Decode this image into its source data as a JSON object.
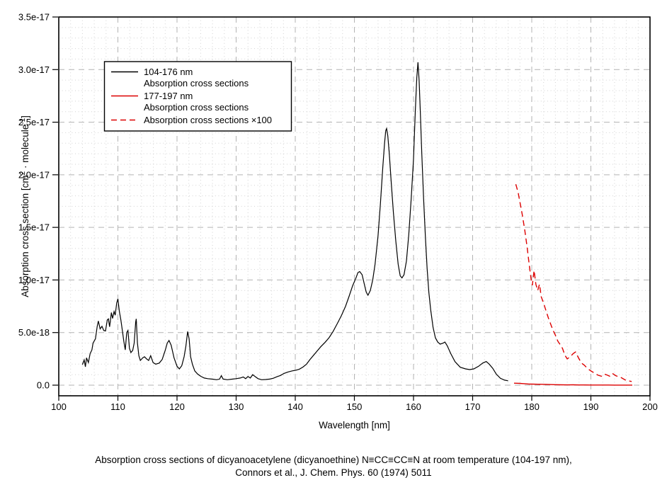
{
  "figure": {
    "caption_line1": "Absorption cross sections of dicyanoacetylene (dicyanoethine) N≡CC≡CC≡N at room temperature (104-197 nm),",
    "caption_line2": "Connors et al., J. Chem. Phys. 60 (1974) 5011"
  },
  "chart_data": {
    "type": "line",
    "title": "",
    "xlabel": "Wavelength [nm]",
    "ylabel": "Absorption cross section [cm2 · molecule-1]",
    "ylabel_parts": [
      {
        "text": "Absorption cross section [cm",
        "sup": false
      },
      {
        "text": "2",
        "sup": true
      },
      {
        "text": " · molecule",
        "sup": false
      },
      {
        "text": "-1",
        "sup": true
      },
      {
        "text": "]",
        "sup": false
      }
    ],
    "y_units": "1e-17 cm^2 per molecule",
    "xlim": [
      100,
      200
    ],
    "ylim": [
      -0.101,
      3.5
    ],
    "x_major_step": 10,
    "x_minor_step": 2,
    "y_major_step": 0.5,
    "y_minor_step": 0.1,
    "grid": {
      "major": "dashed",
      "minor": "dotted"
    },
    "x_ticks": [
      100,
      110,
      120,
      130,
      140,
      150,
      160,
      170,
      180,
      190,
      200
    ],
    "y_ticks": [
      {
        "v": 0.0,
        "label": "0.0"
      },
      {
        "v": 0.5,
        "label": "5.0e-18"
      },
      {
        "v": 1.0,
        "label": "1.0e-17"
      },
      {
        "v": 1.5,
        "label": "1.5e-17"
      },
      {
        "v": 2.0,
        "label": "2.0e-17"
      },
      {
        "v": 2.5,
        "label": "2.5e-17"
      },
      {
        "v": 3.0,
        "label": "3.0e-17"
      },
      {
        "v": 3.5,
        "label": "3.5e-17"
      }
    ],
    "legend": {
      "position": "top-left",
      "entries": [
        {
          "lines": [
            "104-176 nm",
            "Absorption cross sections"
          ],
          "color": "#000000",
          "dash": false
        },
        {
          "lines": [
            "177-197 nm",
            "Absorption cross sections"
          ],
          "color": "#dd0000",
          "dash": false
        },
        {
          "lines": [
            "Absorption cross sections ×100"
          ],
          "color": "#dd0000",
          "dash": true
        }
      ]
    },
    "series": [
      {
        "name": "104-176 nm Absorption cross sections",
        "color": "#000000",
        "dash": false,
        "points": [
          [
            104.0,
            0.195
          ],
          [
            104.3,
            0.24
          ],
          [
            104.5,
            0.175
          ],
          [
            104.7,
            0.26
          ],
          [
            105.0,
            0.215
          ],
          [
            105.3,
            0.3
          ],
          [
            105.6,
            0.335
          ],
          [
            105.8,
            0.4
          ],
          [
            106.0,
            0.42
          ],
          [
            106.2,
            0.44
          ],
          [
            106.5,
            0.56
          ],
          [
            106.7,
            0.61
          ],
          [
            107.0,
            0.535
          ],
          [
            107.3,
            0.56
          ],
          [
            107.6,
            0.52
          ],
          [
            107.9,
            0.515
          ],
          [
            108.2,
            0.62
          ],
          [
            108.4,
            0.63
          ],
          [
            108.6,
            0.555
          ],
          [
            108.9,
            0.69
          ],
          [
            109.1,
            0.635
          ],
          [
            109.35,
            0.7
          ],
          [
            109.55,
            0.665
          ],
          [
            109.8,
            0.78
          ],
          [
            110.0,
            0.82
          ],
          [
            110.25,
            0.7
          ],
          [
            110.5,
            0.62
          ],
          [
            110.8,
            0.5
          ],
          [
            111.0,
            0.42
          ],
          [
            111.25,
            0.335
          ],
          [
            111.5,
            0.5
          ],
          [
            111.7,
            0.52
          ],
          [
            111.95,
            0.35
          ],
          [
            112.2,
            0.31
          ],
          [
            112.5,
            0.33
          ],
          [
            112.75,
            0.4
          ],
          [
            113.0,
            0.6
          ],
          [
            113.1,
            0.63
          ],
          [
            113.3,
            0.4
          ],
          [
            113.55,
            0.28
          ],
          [
            113.8,
            0.235
          ],
          [
            114.2,
            0.26
          ],
          [
            114.5,
            0.27
          ],
          [
            114.85,
            0.25
          ],
          [
            115.2,
            0.235
          ],
          [
            115.55,
            0.28
          ],
          [
            115.95,
            0.215
          ],
          [
            116.4,
            0.2
          ],
          [
            117.0,
            0.21
          ],
          [
            117.5,
            0.245
          ],
          [
            118.0,
            0.33
          ],
          [
            118.35,
            0.4
          ],
          [
            118.65,
            0.425
          ],
          [
            119.0,
            0.38
          ],
          [
            119.5,
            0.26
          ],
          [
            120.0,
            0.18
          ],
          [
            120.4,
            0.155
          ],
          [
            120.8,
            0.185
          ],
          [
            121.2,
            0.27
          ],
          [
            121.5,
            0.37
          ],
          [
            121.8,
            0.51
          ],
          [
            122.05,
            0.44
          ],
          [
            122.3,
            0.27
          ],
          [
            122.6,
            0.2
          ],
          [
            123.0,
            0.135
          ],
          [
            123.5,
            0.105
          ],
          [
            124.0,
            0.085
          ],
          [
            124.6,
            0.068
          ],
          [
            125.2,
            0.062
          ],
          [
            126.0,
            0.057
          ],
          [
            126.7,
            0.052
          ],
          [
            127.2,
            0.058
          ],
          [
            127.5,
            0.09
          ],
          [
            127.8,
            0.058
          ],
          [
            128.5,
            0.052
          ],
          [
            129.3,
            0.057
          ],
          [
            130.0,
            0.062
          ],
          [
            130.7,
            0.068
          ],
          [
            131.2,
            0.078
          ],
          [
            131.6,
            0.062
          ],
          [
            132.0,
            0.082
          ],
          [
            132.4,
            0.068
          ],
          [
            132.8,
            0.1
          ],
          [
            133.2,
            0.082
          ],
          [
            133.7,
            0.062
          ],
          [
            134.3,
            0.052
          ],
          [
            135.0,
            0.054
          ],
          [
            135.7,
            0.058
          ],
          [
            136.3,
            0.066
          ],
          [
            136.9,
            0.08
          ],
          [
            137.5,
            0.092
          ],
          [
            138.1,
            0.112
          ],
          [
            138.8,
            0.126
          ],
          [
            139.5,
            0.136
          ],
          [
            140.1,
            0.142
          ],
          [
            140.7,
            0.152
          ],
          [
            141.3,
            0.172
          ],
          [
            141.9,
            0.2
          ],
          [
            142.5,
            0.245
          ],
          [
            143.1,
            0.285
          ],
          [
            143.7,
            0.325
          ],
          [
            144.3,
            0.365
          ],
          [
            145.0,
            0.405
          ],
          [
            145.7,
            0.45
          ],
          [
            146.4,
            0.51
          ],
          [
            147.1,
            0.585
          ],
          [
            147.8,
            0.66
          ],
          [
            148.5,
            0.75
          ],
          [
            149.1,
            0.845
          ],
          [
            149.7,
            0.945
          ],
          [
            150.2,
            1.01
          ],
          [
            150.6,
            1.07
          ],
          [
            150.9,
            1.08
          ],
          [
            151.3,
            1.05
          ],
          [
            151.7,
            0.955
          ],
          [
            152.0,
            0.885
          ],
          [
            152.3,
            0.855
          ],
          [
            152.7,
            0.9
          ],
          [
            153.1,
            1.0
          ],
          [
            153.5,
            1.15
          ],
          [
            154.0,
            1.42
          ],
          [
            154.4,
            1.72
          ],
          [
            154.8,
            2.07
          ],
          [
            155.1,
            2.3
          ],
          [
            155.3,
            2.42
          ],
          [
            155.45,
            2.44
          ],
          [
            155.65,
            2.37
          ],
          [
            155.9,
            2.2
          ],
          [
            156.2,
            1.95
          ],
          [
            156.6,
            1.64
          ],
          [
            157.0,
            1.37
          ],
          [
            157.4,
            1.15
          ],
          [
            157.75,
            1.04
          ],
          [
            158.05,
            1.02
          ],
          [
            158.4,
            1.05
          ],
          [
            158.8,
            1.18
          ],
          [
            159.2,
            1.43
          ],
          [
            159.6,
            1.77
          ],
          [
            160.0,
            2.15
          ],
          [
            160.3,
            2.6
          ],
          [
            160.55,
            2.92
          ],
          [
            160.75,
            3.07
          ],
          [
            160.95,
            2.9
          ],
          [
            161.15,
            2.6
          ],
          [
            161.4,
            2.2
          ],
          [
            161.7,
            1.78
          ],
          [
            162.0,
            1.42
          ],
          [
            162.3,
            1.11
          ],
          [
            162.6,
            0.88
          ],
          [
            162.9,
            0.72
          ],
          [
            163.3,
            0.55
          ],
          [
            163.7,
            0.45
          ],
          [
            164.1,
            0.41
          ],
          [
            164.5,
            0.39
          ],
          [
            165.0,
            0.4
          ],
          [
            165.3,
            0.41
          ],
          [
            165.7,
            0.375
          ],
          [
            166.3,
            0.3
          ],
          [
            167.0,
            0.225
          ],
          [
            167.9,
            0.17
          ],
          [
            168.8,
            0.155
          ],
          [
            169.5,
            0.148
          ],
          [
            170.2,
            0.155
          ],
          [
            171.0,
            0.18
          ],
          [
            171.7,
            0.21
          ],
          [
            172.3,
            0.225
          ],
          [
            172.8,
            0.2
          ],
          [
            173.4,
            0.16
          ],
          [
            174.0,
            0.105
          ],
          [
            174.7,
            0.065
          ],
          [
            175.4,
            0.048
          ],
          [
            176.0,
            0.042
          ]
        ]
      },
      {
        "name": "177-197 nm Absorption cross sections",
        "color": "#dd0000",
        "dash": false,
        "points": [
          [
            177.0,
            0.019
          ],
          [
            177.5,
            0.018
          ],
          [
            178.0,
            0.017
          ],
          [
            178.5,
            0.015
          ],
          [
            179.0,
            0.013
          ],
          [
            179.5,
            0.011
          ],
          [
            180.0,
            0.01
          ],
          [
            181.0,
            0.009
          ],
          [
            182.0,
            0.008
          ],
          [
            183.0,
            0.006
          ],
          [
            184.0,
            0.005
          ],
          [
            185.0,
            0.0035
          ],
          [
            186.0,
            0.0025
          ],
          [
            187.0,
            0.003
          ],
          [
            188.0,
            0.002
          ],
          [
            189.0,
            0.0017
          ],
          [
            190.0,
            0.0013
          ],
          [
            191.0,
            0.001
          ],
          [
            192.0,
            0.001
          ],
          [
            193.0,
            0.0011
          ],
          [
            194.0,
            0.0009
          ],
          [
            195.0,
            0.0007
          ],
          [
            196.0,
            0.0004
          ],
          [
            197.0,
            0.0003
          ]
        ]
      },
      {
        "name": "Absorption cross sections ×100",
        "color": "#dd0000",
        "dash": true,
        "points": [
          [
            177.3,
            1.91
          ],
          [
            177.7,
            1.83
          ],
          [
            178.0,
            1.74
          ],
          [
            178.4,
            1.62
          ],
          [
            178.8,
            1.48
          ],
          [
            179.2,
            1.32
          ],
          [
            179.6,
            1.13
          ],
          [
            179.9,
            1.0
          ],
          [
            180.1,
            0.95
          ],
          [
            180.4,
            1.09
          ],
          [
            180.7,
            0.96
          ],
          [
            181.0,
            0.9
          ],
          [
            181.3,
            0.96
          ],
          [
            181.6,
            0.84
          ],
          [
            182.0,
            0.78
          ],
          [
            182.4,
            0.71
          ],
          [
            182.8,
            0.64
          ],
          [
            183.2,
            0.58
          ],
          [
            183.6,
            0.52
          ],
          [
            184.0,
            0.475
          ],
          [
            184.4,
            0.42
          ],
          [
            184.8,
            0.385
          ],
          [
            185.2,
            0.35
          ],
          [
            185.6,
            0.285
          ],
          [
            186.0,
            0.25
          ],
          [
            186.5,
            0.27
          ],
          [
            187.0,
            0.3
          ],
          [
            187.4,
            0.315
          ],
          [
            187.9,
            0.26
          ],
          [
            188.4,
            0.21
          ],
          [
            188.9,
            0.19
          ],
          [
            189.4,
            0.16
          ],
          [
            190.0,
            0.135
          ],
          [
            190.6,
            0.115
          ],
          [
            191.2,
            0.095
          ],
          [
            191.8,
            0.085
          ],
          [
            192.3,
            0.105
          ],
          [
            192.8,
            0.095
          ],
          [
            193.2,
            0.085
          ],
          [
            193.7,
            0.11
          ],
          [
            194.2,
            0.09
          ],
          [
            194.7,
            0.08
          ],
          [
            195.2,
            0.07
          ],
          [
            195.8,
            0.05
          ],
          [
            196.3,
            0.042
          ],
          [
            196.9,
            0.035
          ]
        ]
      }
    ],
    "colors": {
      "frame": "#000000",
      "grid_major": "#b3b3b3",
      "grid_minor": "#d2d2d2",
      "background": "#ffffff"
    }
  }
}
